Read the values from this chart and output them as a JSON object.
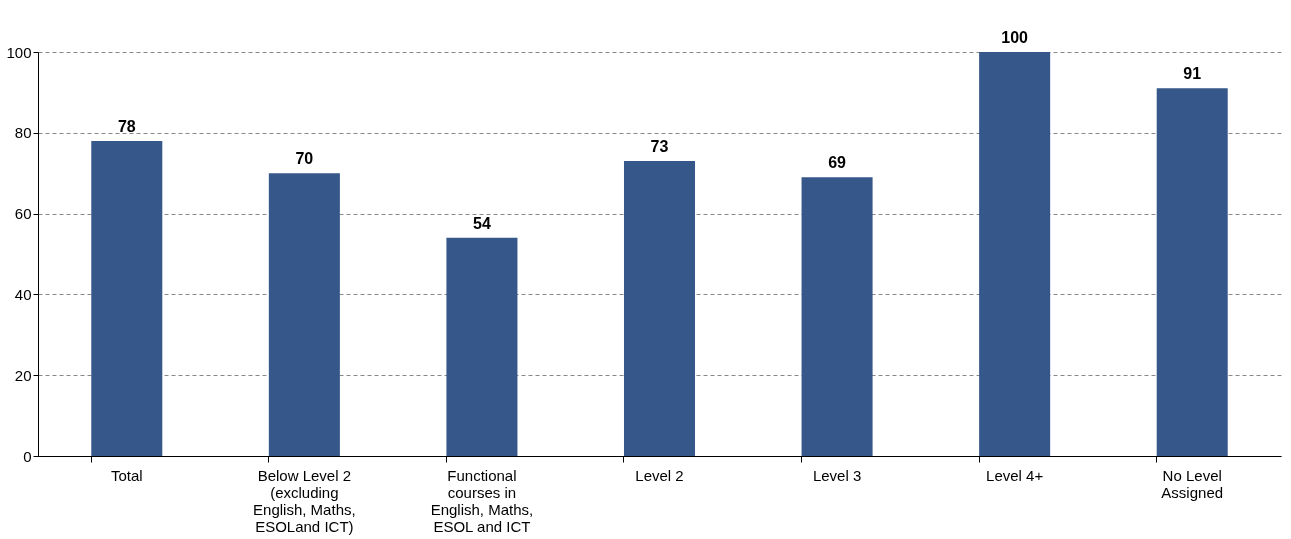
{
  "chart_data": {
    "type": "bar",
    "categories": [
      "Total",
      "Below Level 2 (excluding English, Maths, ESOLand ICT)",
      "Functional courses in English, Maths, ESOL and ICT",
      "Level 2",
      "Level 3",
      "Level 4+",
      "No Level Assigned"
    ],
    "values": [
      78,
      70,
      54,
      73,
      69,
      100,
      91
    ],
    "color": "#35578a",
    "ylim": [
      0,
      100
    ],
    "yticks": [
      0,
      20,
      40,
      60,
      80,
      100
    ],
    "grid": "y",
    "data_labels": true
  }
}
